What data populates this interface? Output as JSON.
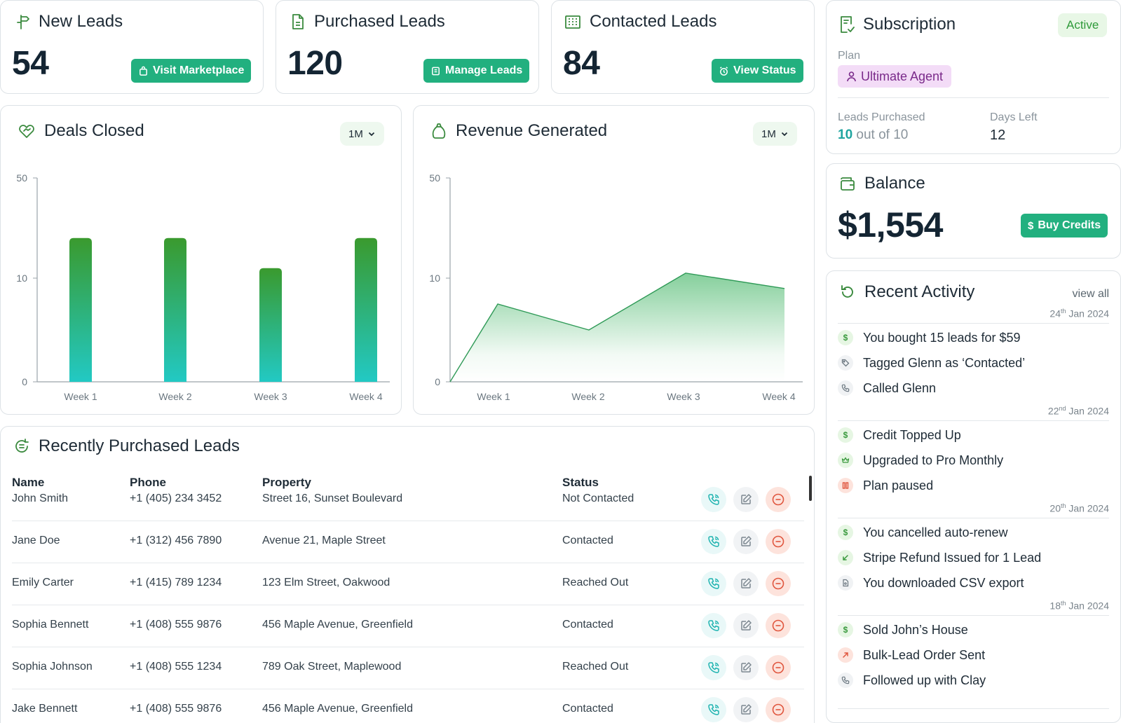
{
  "stats": [
    {
      "title": "New Leads",
      "value": "54",
      "button": "Visit Marketplace"
    },
    {
      "title": "Purchased Leads",
      "value": "120",
      "button": "Manage Leads"
    },
    {
      "title": "Contacted Leads",
      "value": "84",
      "button": "View Status"
    }
  ],
  "deals": {
    "title": "Deals Closed",
    "period": "1M"
  },
  "revenue": {
    "title": "Revenue Generated",
    "period": "1M"
  },
  "chart_data": [
    {
      "type": "bar",
      "title": "Deals Closed",
      "categories": [
        "Week 1",
        "Week 2",
        "Week 3",
        "Week 4"
      ],
      "values": [
        26,
        26,
        14,
        26
      ],
      "y_ticks": [
        "50",
        "10",
        "0"
      ],
      "ylim": [
        0,
        50
      ],
      "grid": false,
      "colors": {
        "top": "#3a9a2e",
        "bottom": "#22c9c4"
      }
    },
    {
      "type": "area",
      "title": "Revenue Generated",
      "categories": [
        "Week 1",
        "Week 2",
        "Week 3",
        "Week 4"
      ],
      "x": [
        "start",
        "Week 1",
        "Week 2",
        "Week 3",
        "Week 4"
      ],
      "values": [
        0,
        7.5,
        5,
        12,
        9
      ],
      "y_ticks": [
        "50",
        "10",
        "0"
      ],
      "ylim": [
        0,
        50
      ],
      "grid": false,
      "colors": {
        "fill": "#5cbf7a",
        "line": "#2f9a57"
      }
    }
  ],
  "subscription": {
    "title": "Subscription",
    "status": "Active",
    "plan_label": "Plan",
    "plan": "Ultimate Agent",
    "leads_label": "Leads Purchased",
    "leads_used": "10",
    "leads_of": "out of 10",
    "days_label": "Days Left",
    "days": "12"
  },
  "balance": {
    "title": "Balance",
    "amount": "$1,554",
    "button": "Buy Credits"
  },
  "activity": {
    "title": "Recent Activity",
    "view_all": "view all",
    "groups": [
      {
        "day": "24",
        "suffix": "th",
        "rest": " Jan 2024",
        "items": [
          {
            "icon": "dollar-icon",
            "text": "You bought 15 leads for $59"
          },
          {
            "icon": "tag-icon",
            "text": "Tagged Glenn as ‘Contacted’"
          },
          {
            "icon": "phone-icon",
            "text": "Called Glenn"
          }
        ]
      },
      {
        "day": "22",
        "suffix": "nd",
        "rest": " Jan 2024",
        "items": [
          {
            "icon": "dollar-icon",
            "text": "Credit Topped Up"
          },
          {
            "icon": "crown-icon",
            "text": "Upgraded to Pro Monthly"
          },
          {
            "icon": "pause-icon",
            "text": "Plan paused"
          }
        ]
      },
      {
        "day": "20",
        "suffix": "th",
        "rest": " Jan 2024",
        "items": [
          {
            "icon": "dollar-icon",
            "text": "You cancelled auto-renew"
          },
          {
            "icon": "arrow-down-left-icon",
            "text": "Stripe Refund Issued for 1 Lead"
          },
          {
            "icon": "file-icon",
            "text": "You downloaded CSV export"
          }
        ]
      },
      {
        "day": "18",
        "suffix": "th",
        "rest": " Jan 2024",
        "items": [
          {
            "icon": "dollar-icon",
            "text": "Sold John’s House"
          },
          {
            "icon": "arrow-up-right-icon",
            "text": "Bulk-Lead Order Sent"
          },
          {
            "icon": "phone-icon",
            "text": "Followed up with Clay"
          }
        ]
      }
    ]
  },
  "leads_table": {
    "title": "Recently Purchased Leads",
    "columns": [
      "Name",
      "Phone",
      "Property",
      "Status"
    ],
    "rows": [
      [
        "John Smith",
        "+1 (405) 234 3452",
        "Street 16, Sunset Boulevard",
        "Not Contacted"
      ],
      [
        "Jane Doe",
        "+1 (312) 456 7890",
        "Avenue 21, Maple Street",
        "Contacted"
      ],
      [
        "Emily Carter",
        "+1 (415) 789 1234",
        "123 Elm Street, Oakwood",
        "Reached Out"
      ],
      [
        "Sophia Bennett",
        "+1 (408) 555 9876",
        "456 Maple Avenue, Greenfield",
        "Contacted"
      ],
      [
        "Sophia Johnson",
        "+1 (408) 555 1234",
        "789 Oak Street, Maplewood",
        "Reached Out"
      ],
      [
        "Jake Bennett",
        "+1 (408) 555 9876",
        "456 Maple Avenue, Greenfield",
        "Contacted"
      ]
    ]
  }
}
